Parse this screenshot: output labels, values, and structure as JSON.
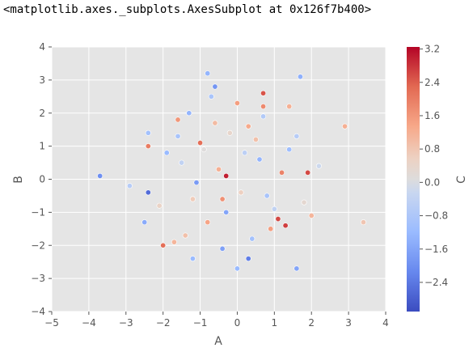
{
  "cell_output": {
    "repr": "<matplotlib.axes._subplots.AxesSubplot at 0x126f7b400>"
  },
  "chart_data": {
    "type": "scatter",
    "title": "",
    "xlabel": "A",
    "ylabel": "B",
    "colorbar_label": "C",
    "xlim": [
      -5,
      4
    ],
    "ylim": [
      -4,
      4
    ],
    "xticks": [
      -5,
      -4,
      -3,
      -2,
      -1,
      0,
      1,
      2,
      3,
      4
    ],
    "yticks": [
      -4,
      -3,
      -2,
      -1,
      0,
      1,
      2,
      3,
      4
    ],
    "xtick_labels": [
      "−5",
      "−4",
      "−3",
      "−2",
      "−1",
      "0",
      "1",
      "2",
      "3",
      "4"
    ],
    "ytick_labels": [
      "−4",
      "−3",
      "−2",
      "−1",
      "0",
      "1",
      "2",
      "3",
      "4"
    ],
    "colorbar": {
      "colormap": "coolwarm",
      "clim": [
        -3.1,
        3.25
      ],
      "ticks": [
        3.2,
        2.4,
        1.6,
        0.8,
        0.0,
        -0.8,
        -1.6,
        -2.4
      ],
      "tick_labels": [
        "3.2",
        "2.4",
        "1.6",
        "0.8",
        "0.0",
        "−0.8",
        "−1.6",
        "−2.4"
      ],
      "low_color": "#3b4cc0",
      "mid_color": "#dddddd",
      "high_color": "#b40426"
    },
    "grid": true,
    "style": "ggplot",
    "background_color": "#e5e5e5",
    "points": [
      [
        -3.7,
        0.1,
        -2.0
      ],
      [
        -2.9,
        -0.2,
        -0.6
      ],
      [
        -2.4,
        1.4,
        -1.0
      ],
      [
        -2.4,
        1.0,
        2.0
      ],
      [
        -2.4,
        -0.4,
        -2.6
      ],
      [
        -2.5,
        -1.3,
        -1.5
      ],
      [
        -2.0,
        -2.0,
        2.2
      ],
      [
        -1.7,
        -1.9,
        1.1
      ],
      [
        -1.6,
        1.8,
        1.6
      ],
      [
        -1.3,
        2.0,
        -1.3
      ],
      [
        -1.2,
        -2.4,
        -1.2
      ],
      [
        -0.8,
        3.2,
        -1.3
      ],
      [
        -0.6,
        2.8,
        -1.9
      ],
      [
        -0.7,
        2.5,
        -0.9
      ],
      [
        0.0,
        2.3,
        1.5
      ],
      [
        0.7,
        2.6,
        2.5
      ],
      [
        0.7,
        2.2,
        1.8
      ],
      [
        1.4,
        2.2,
        1.2
      ],
      [
        1.7,
        3.1,
        -1.4
      ],
      [
        2.9,
        1.6,
        1.2
      ],
      [
        0.3,
        -2.4,
        -2.3
      ],
      [
        0.0,
        -2.7,
        -1.2
      ],
      [
        1.6,
        -2.7,
        -1.6
      ],
      [
        -0.4,
        -2.1,
        -1.7
      ],
      [
        3.4,
        -1.3,
        0.8
      ],
      [
        -0.3,
        0.1,
        3.0
      ],
      [
        1.1,
        -1.2,
        2.6
      ],
      [
        1.3,
        -1.4,
        2.7
      ],
      [
        1.9,
        0.2,
        2.6
      ],
      [
        -1.0,
        1.1,
        2.2
      ],
      [
        0.2,
        0.8,
        -0.5
      ],
      [
        -0.5,
        0.3,
        1.2
      ],
      [
        0.8,
        -0.5,
        -0.9
      ],
      [
        -1.2,
        -0.6,
        0.7
      ],
      [
        1.4,
        0.9,
        -1.1
      ],
      [
        0.5,
        1.2,
        0.9
      ],
      [
        -0.3,
        -1.0,
        -1.6
      ],
      [
        0.9,
        -1.5,
        1.5
      ],
      [
        -1.5,
        0.5,
        -0.4
      ],
      [
        1.8,
        -0.7,
        0.3
      ],
      [
        -0.8,
        -1.3,
        1.4
      ],
      [
        0.1,
        -0.4,
        0.6
      ],
      [
        -1.9,
        0.8,
        -1.2
      ],
      [
        2.2,
        0.4,
        -0.2
      ],
      [
        -0.6,
        1.7,
        1.0
      ],
      [
        0.4,
        -1.8,
        -1.0
      ],
      [
        1.2,
        0.2,
        1.9
      ],
      [
        -1.1,
        -0.1,
        -1.8
      ],
      [
        0.7,
        1.9,
        -0.7
      ],
      [
        -0.2,
        1.4,
        0.4
      ],
      [
        1.6,
        1.3,
        -0.6
      ],
      [
        -1.4,
        -1.7,
        0.9
      ],
      [
        0.6,
        0.6,
        -1.3
      ],
      [
        -0.9,
        0.9,
        0.1
      ],
      [
        2.0,
        -1.1,
        1.1
      ],
      [
        -2.1,
        -0.8,
        0.5
      ],
      [
        1.0,
        -0.9,
        -0.4
      ],
      [
        -0.4,
        -0.6,
        1.7
      ],
      [
        0.3,
        1.6,
        1.3
      ],
      [
        -1.6,
        1.3,
        -0.9
      ]
    ]
  }
}
